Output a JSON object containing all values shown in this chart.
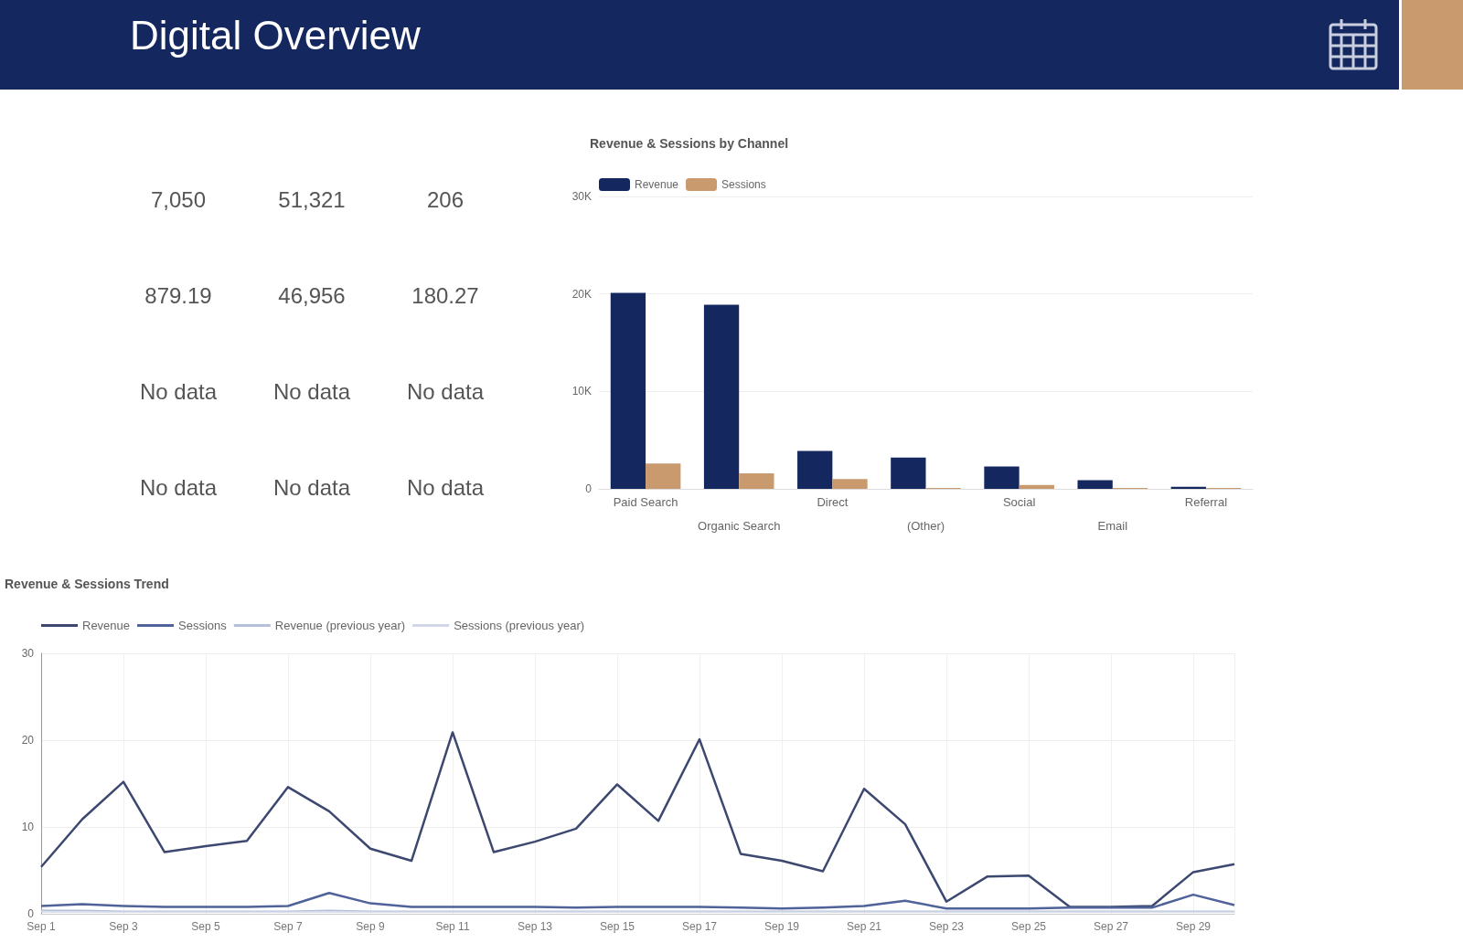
{
  "chart_data": [
    {
      "type": "other",
      "title": "Digital Overview",
      "annotations": [
        "7,050",
        "51,321",
        "206",
        "879.19",
        "46,956",
        "180.27",
        "No data",
        "No data",
        "No data",
        "No data",
        "No data",
        "No data"
      ]
    },
    {
      "type": "bar",
      "title": "Revenue & Sessions by Channel",
      "categories": [
        "Paid Search",
        "Organic Search",
        "Direct",
        "(Other)",
        "Social",
        "Email",
        "Referral"
      ],
      "series": [
        {
          "name": "Revenue",
          "color": "#14275e",
          "values": [
            20100,
            18900,
            3900,
            3200,
            2300,
            900,
            200
          ]
        },
        {
          "name": "Sessions",
          "color": "#c99a6e",
          "values": [
            2600,
            1600,
            1000,
            100,
            400,
            100,
            100
          ]
        }
      ],
      "ylim": [
        0,
        30000
      ],
      "yticks": [
        {
          "value": 0,
          "label": "0"
        },
        {
          "value": 10000,
          "label": "10K"
        },
        {
          "value": 20000,
          "label": "20K"
        },
        {
          "value": 30000,
          "label": "30K"
        }
      ],
      "grid": "y",
      "legend": "top left"
    },
    {
      "type": "line",
      "title": "Revenue & Sessions Trend",
      "categories": [
        "Sep 1",
        null,
        "Sep 3",
        null,
        "Sep 5",
        null,
        "Sep 7",
        null,
        "Sep 9",
        null,
        "Sep 11",
        null,
        "Sep 13",
        null,
        "Sep 15",
        null,
        "Sep 17",
        null,
        "Sep 19",
        null,
        "Sep 21",
        null,
        "Sep 23",
        null,
        "Sep 25",
        null,
        "Sep 27",
        null,
        "Sep 29",
        null
      ],
      "series": [
        {
          "name": "Revenue",
          "color": "#3d4870",
          "values": [
            5.4,
            10.9,
            15.2,
            7.1,
            7.8,
            8.4,
            14.6,
            11.8,
            7.5,
            6.1,
            20.9,
            7.1,
            8.3,
            9.8,
            14.9,
            10.7,
            20.1,
            6.9,
            6.1,
            4.9,
            14.4,
            10.3,
            1.4,
            4.3,
            4.4,
            0.8,
            0.8,
            0.9,
            4.8,
            5.7
          ]
        },
        {
          "name": "Sessions",
          "color": "#4f6299",
          "values": [
            0.9,
            1.1,
            0.9,
            0.8,
            0.8,
            0.8,
            0.9,
            2.4,
            1.2,
            0.8,
            0.8,
            0.8,
            0.8,
            0.7,
            0.8,
            0.8,
            0.8,
            0.7,
            0.6,
            0.7,
            0.9,
            1.5,
            0.6,
            0.6,
            0.6,
            0.7,
            0.7,
            0.7,
            2.2,
            1.0
          ]
        },
        {
          "name": "Revenue (previous year)",
          "color": "#b6bfd9",
          "values": [
            0.4,
            0.4,
            0.3,
            0.3,
            0.3,
            0.3,
            0.3,
            0.4,
            0.3,
            0.3,
            0.3,
            0.3,
            0.3,
            0.3,
            0.3,
            0.3,
            0.3,
            0.3,
            0.3,
            0.3,
            0.3,
            0.3,
            0.3,
            0.3,
            0.3,
            0.3,
            0.3,
            0.3,
            0.3,
            0.3
          ]
        },
        {
          "name": "Sessions (previous year)",
          "color": "#d0d6e6",
          "values": [
            0.2,
            0.2,
            0.2,
            0.2,
            0.2,
            0.2,
            0.2,
            0.2,
            0.2,
            0.2,
            0.2,
            0.2,
            0.2,
            0.2,
            0.2,
            0.2,
            0.2,
            0.2,
            0.2,
            0.2,
            0.2,
            0.2,
            0.2,
            0.2,
            0.2,
            0.2,
            0.2,
            0.2,
            0.2,
            0.2
          ]
        }
      ],
      "ylim": [
        0,
        30
      ],
      "yticks": [
        0,
        10,
        20,
        30
      ],
      "grid": true,
      "legend": "top left",
      "marker": "none",
      "line_style": "solid"
    }
  ]
}
